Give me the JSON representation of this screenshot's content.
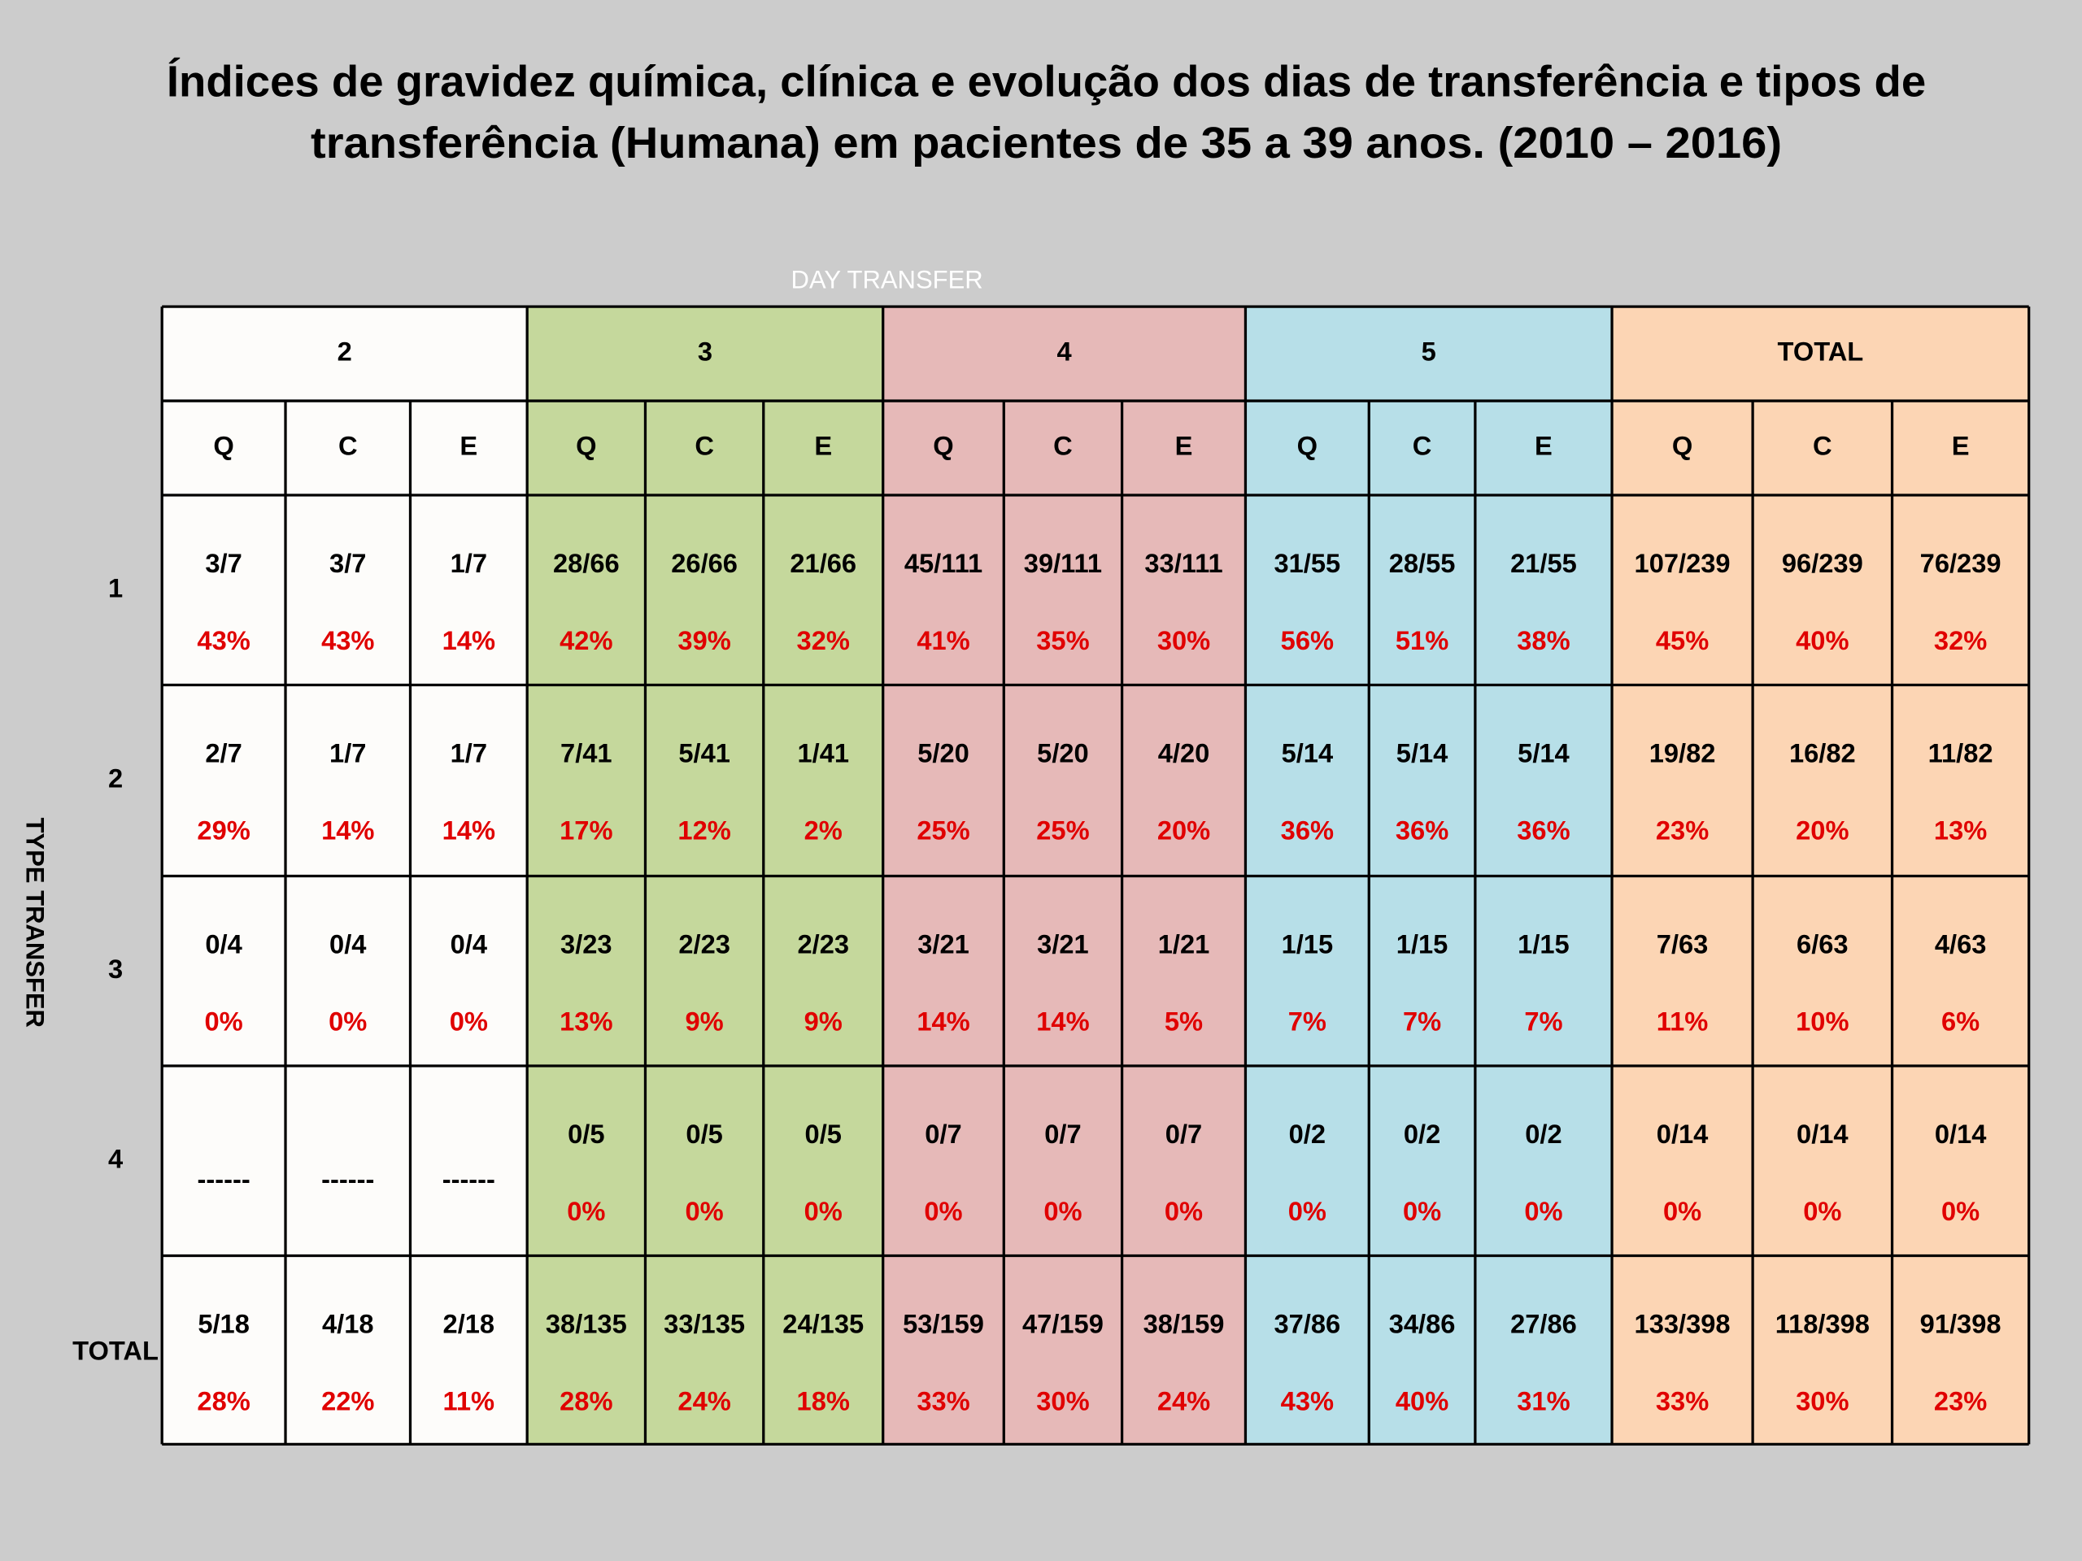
{
  "title_lines": [
    "Índices de gravidez química, clínica e evolução dos dias de transferência e tipos de",
    "transferência (Humana) em pacientes de 35 a 39 anos. (2010 – 2016)"
  ],
  "column_header": "DAY TRANSFER",
  "row_header": "TYPE TRANSFER",
  "groups": [
    "2",
    "3",
    "4",
    "5",
    "TOTAL"
  ],
  "subheaders": [
    [
      "Q",
      "C",
      "E"
    ],
    [
      "Q",
      "C",
      "E"
    ],
    [
      "Q",
      "C",
      "E"
    ],
    [
      "Q",
      "C",
      "E"
    ],
    [
      "Q",
      "C",
      "E"
    ]
  ],
  "rows": [
    {
      "label": "1",
      "cells": [
        [
          "3/7",
          "43%"
        ],
        [
          "3/7",
          "43%"
        ],
        [
          "1/7",
          "14%"
        ],
        [
          "28/66",
          "42%"
        ],
        [
          "26/66",
          "39%"
        ],
        [
          "21/66",
          "32%"
        ],
        [
          "45/111",
          "41%"
        ],
        [
          "39/111",
          "35%"
        ],
        [
          "33/111",
          "30%"
        ],
        [
          "31/55",
          "56%"
        ],
        [
          "28/55",
          "51%"
        ],
        [
          "21/55",
          "38%"
        ],
        [
          "107/239",
          "45%"
        ],
        [
          "96/239",
          "40%"
        ],
        [
          "76/239",
          "32%"
        ]
      ]
    },
    {
      "label": "2",
      "cells": [
        [
          "2/7",
          "29%"
        ],
        [
          "1/7",
          "14%"
        ],
        [
          "1/7",
          "14%"
        ],
        [
          "7/41",
          "17%"
        ],
        [
          "5/41",
          "12%"
        ],
        [
          "1/41",
          "2%"
        ],
        [
          "5/20",
          "25%"
        ],
        [
          "5/20",
          "25%"
        ],
        [
          "4/20",
          "20%"
        ],
        [
          "5/14",
          "36%"
        ],
        [
          "5/14",
          "36%"
        ],
        [
          "5/14",
          "36%"
        ],
        [
          "19/82",
          "23%"
        ],
        [
          "16/82",
          "20%"
        ],
        [
          "11/82",
          "13%"
        ]
      ]
    },
    {
      "label": "3",
      "cells": [
        [
          "0/4",
          "0%"
        ],
        [
          "0/4",
          "0%"
        ],
        [
          "0/4",
          "0%"
        ],
        [
          "3/23",
          "13%"
        ],
        [
          "2/23",
          "9%"
        ],
        [
          "2/23",
          "9%"
        ],
        [
          "3/21",
          "14%"
        ],
        [
          "3/21",
          "14%"
        ],
        [
          "1/21",
          "5%"
        ],
        [
          "1/15",
          "7%"
        ],
        [
          "1/15",
          "7%"
        ],
        [
          "1/15",
          "7%"
        ],
        [
          "7/63",
          "11%"
        ],
        [
          "6/63",
          "10%"
        ],
        [
          "4/63",
          "6%"
        ]
      ]
    },
    {
      "label": "4",
      "cells": [
        [
          "------"
        ],
        [
          "------"
        ],
        [
          "------"
        ],
        [
          "0/5",
          "0%"
        ],
        [
          "0/5",
          "0%"
        ],
        [
          "0/5",
          "0%"
        ],
        [
          "0/7",
          "0%"
        ],
        [
          "0/7",
          "0%"
        ],
        [
          "0/7",
          "0%"
        ],
        [
          "0/2",
          "0%"
        ],
        [
          "0/2",
          "0%"
        ],
        [
          "0/2",
          "0%"
        ],
        [
          "0/14",
          "0%"
        ],
        [
          "0/14",
          "0%"
        ],
        [
          "0/14",
          "0%"
        ]
      ]
    },
    {
      "label": "TOTAL",
      "cells": [
        [
          "5/18",
          "28%"
        ],
        [
          "4/18",
          "22%"
        ],
        [
          "2/18",
          "11%"
        ],
        [
          "38/135",
          "28%"
        ],
        [
          "33/135",
          "24%"
        ],
        [
          "24/135",
          "18%"
        ],
        [
          "53/159",
          "33%"
        ],
        [
          "47/159",
          "30%"
        ],
        [
          "38/159",
          "24%"
        ],
        [
          "37/86",
          "43%"
        ],
        [
          "34/86",
          "40%"
        ],
        [
          "27/86",
          "31%"
        ],
        [
          "133/398",
          "33%"
        ],
        [
          "118/398",
          "30%"
        ],
        [
          "91/398",
          "23%"
        ]
      ]
    }
  ]
}
